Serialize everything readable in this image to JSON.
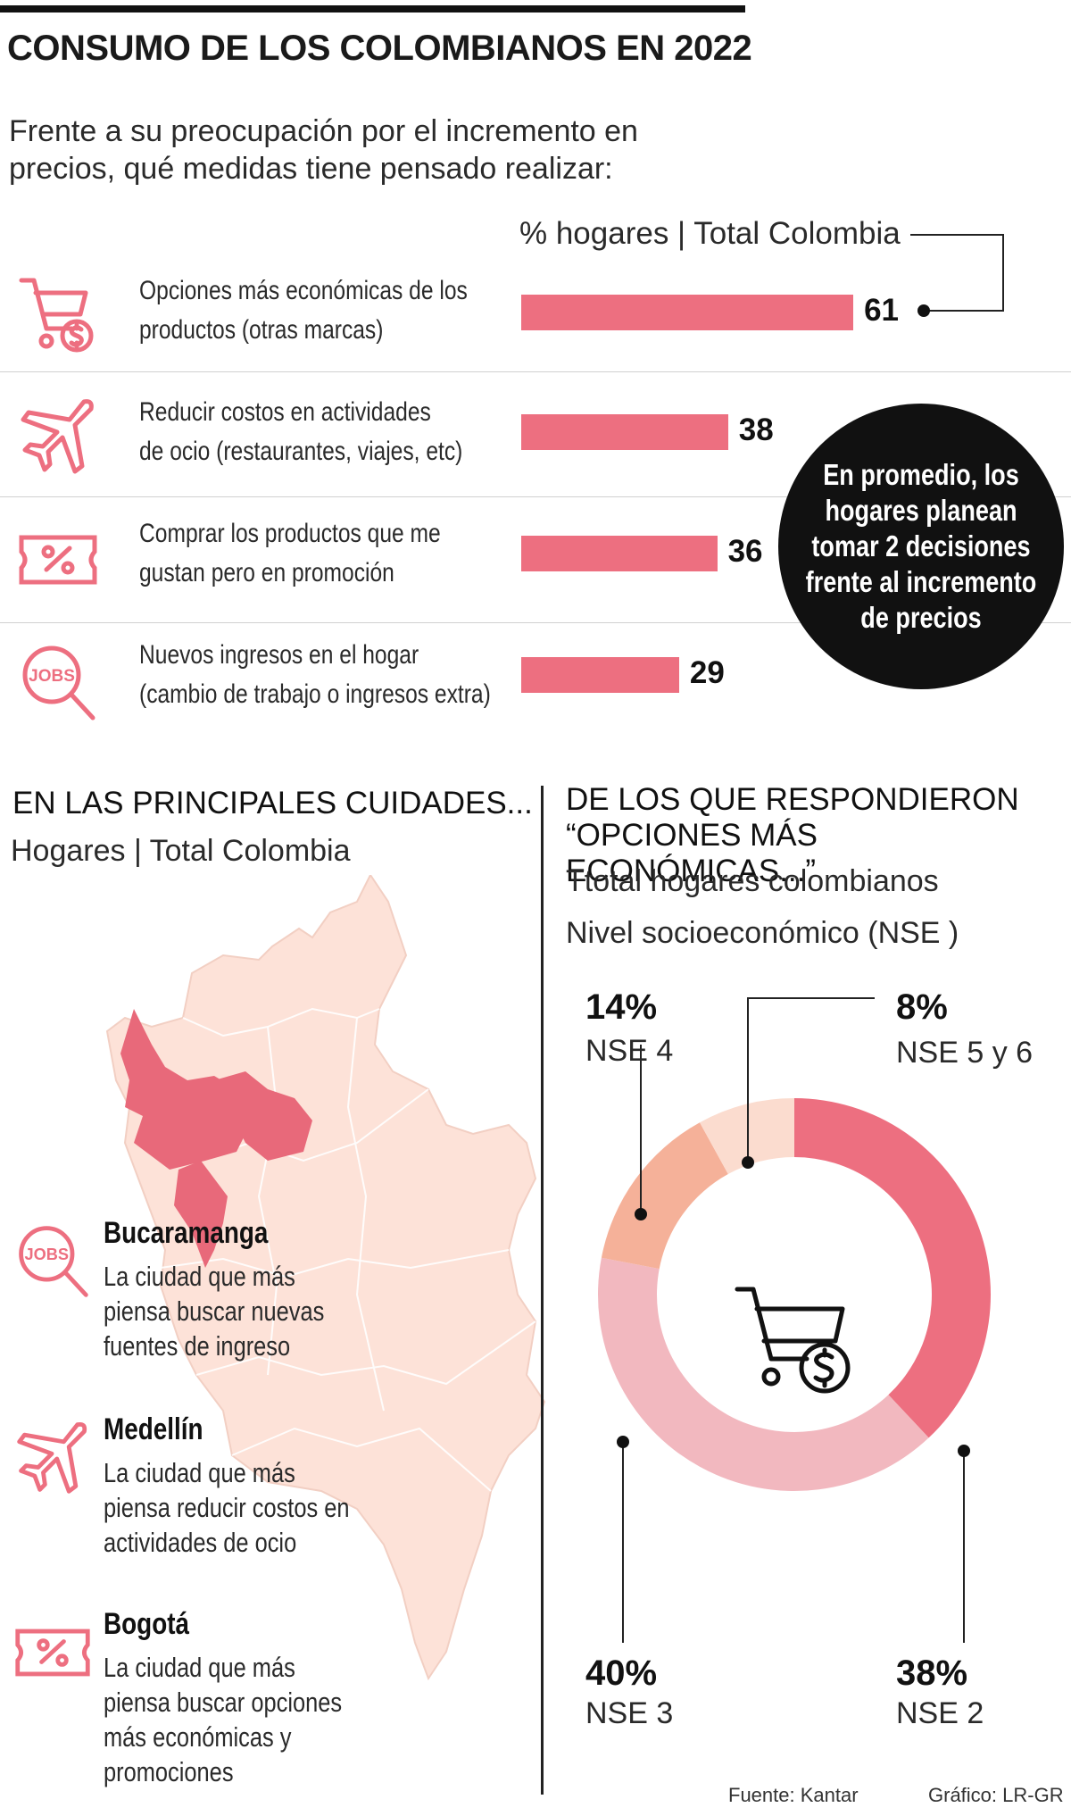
{
  "title": "CONSUMO DE LOS COLOMBIANOS EN 2022",
  "question": "Frente a su preocupación por el incremento en precios, qué medidas tiene pensado realizar:",
  "chart_unit": "% hogares | Total Colombia",
  "callout": "En promedio, los hogares planean tomar 2 decisiones frente al incremento de precios",
  "colors": {
    "accent": "#ed6f80",
    "map_base": "#fde2d8",
    "map_highlight": "#e8697a",
    "dark": "#111111"
  },
  "chart_data": [
    {
      "type": "bar",
      "orientation": "horizontal",
      "unit": "% hogares | Total Colombia",
      "categories": [
        "Opciones más económicas de los productos (otras marcas)",
        "Reducir costos en actividades de ocio (restaurantes, viajes, etc)",
        "Comprar los productos que me gustan pero en promoción",
        "Nuevos ingresos en el hogar (cambio de trabajo o ingresos extra)"
      ],
      "values": [
        61,
        38,
        36,
        29
      ],
      "icons": [
        "shopping-cart-dollar-icon",
        "airplane-icon",
        "discount-ticket-icon",
        "jobs-search-icon"
      ]
    },
    {
      "type": "pie",
      "variant": "donut",
      "title": "DE LOS QUE RESPONDIERON “OPCIONES MÁS ECONÓMICAS...”",
      "subtitle": "Ttotal hogares colombianos",
      "subtitle2": "Nivel socioeconómico (NSE )",
      "slices": [
        {
          "label": "NSE 2",
          "value": 38,
          "display": "38%",
          "color": "#ed6f80"
        },
        {
          "label": "NSE 3",
          "value": 40,
          "display": "40%",
          "color": "#f2b8bf"
        },
        {
          "label": "NSE 4",
          "value": 14,
          "display": "14%",
          "color": "#f5b199"
        },
        {
          "label": "NSE 5 y 6",
          "value": 8,
          "display": "8%",
          "color": "#fbdccf"
        }
      ],
      "center_icon": "shopping-cart-dollar-icon"
    }
  ],
  "rows": [
    {
      "label_line1": "Opciones más económicas de los",
      "label_line2": "productos (otras marcas)"
    },
    {
      "label_line1": "Reducir costos en actividades",
      "label_line2": "de ocio (restaurantes, viajes, etc)"
    },
    {
      "label_line1": "Comprar los productos que me",
      "label_line2": "gustan pero en promoción"
    },
    {
      "label_line1": "Nuevos ingresos en el hogar",
      "label_line2": "(cambio de trabajo o ingresos extra)"
    }
  ],
  "map_section": {
    "title": "EN LAS PRINCIPALES CUIDADES...",
    "subtitle": "Hogares | Total Colombia",
    "cities": [
      {
        "name": "Bucaramanga",
        "desc": "La ciudad que más piensa buscar nuevas fuentes de ingreso",
        "icon": "jobs-search-icon"
      },
      {
        "name": "Medellín",
        "desc": "La ciudad que más piensa reducir costos en actividades de ocio",
        "icon": "airplane-icon"
      },
      {
        "name": "Bogotá",
        "desc": "La ciudad que más piensa buscar opciones más económicas y promociones",
        "icon": "discount-ticket-icon"
      }
    ]
  },
  "footer": {
    "source": "Fuente: Kantar",
    "credit": "Gráfico: LR-GR"
  }
}
